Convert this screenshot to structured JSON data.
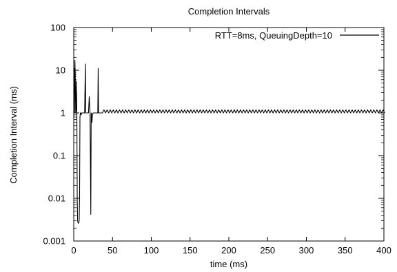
{
  "chart_data": {
    "type": "line",
    "title": "Completion Intervals",
    "xlabel": "time (ms)",
    "ylabel": "Completion Interval (ms)",
    "xlim": [
      0,
      400
    ],
    "ylim": [
      0.001,
      100
    ],
    "yscale": "log",
    "x_ticks": [
      0,
      50,
      100,
      150,
      200,
      250,
      300,
      350,
      400
    ],
    "x_tick_labels": [
      "0",
      "50",
      "100",
      "150",
      "200",
      "250",
      "300",
      "350",
      "400"
    ],
    "y_ticks": [
      0.001,
      0.01,
      0.1,
      1,
      10,
      100
    ],
    "y_tick_labels": [
      "0.001",
      "0.01",
      "0.1",
      "1",
      "10",
      "100"
    ],
    "grid": false,
    "legend_position": "top-right",
    "series": [
      {
        "name": "RTT=8ms, QueuingDepth=10",
        "color": "#000000",
        "x": [
          0,
          0.5,
          1,
          1.5,
          2,
          2.5,
          3,
          3.5,
          4,
          4.5,
          5,
          5.5,
          6,
          6.5,
          7,
          7.5,
          8,
          8.5,
          9,
          9.5,
          10,
          11,
          12,
          13,
          14,
          15,
          15.5,
          16,
          16.5,
          17,
          18,
          19,
          20,
          21,
          22,
          22.5,
          23,
          23.5,
          24,
          25,
          26,
          27,
          28,
          29,
          30,
          31,
          31.5,
          32,
          32.5,
          33,
          34,
          35,
          36,
          37
        ],
        "y": [
          1,
          11,
          1,
          17,
          7,
          1,
          1.2,
          5.5,
          1,
          0.01,
          0.003,
          0.0027,
          0.0026,
          0.0027,
          0.003,
          0.01,
          0.8,
          1,
          1,
          0.9,
          1,
          1,
          1,
          1,
          1,
          14,
          1,
          1,
          1,
          1,
          1,
          1,
          2.4,
          1,
          0.0042,
          1,
          0.9,
          0.6,
          0.9,
          1,
          1,
          1,
          1,
          1,
          1,
          1,
          11,
          1,
          1,
          1,
          1,
          1,
          1,
          1
        ],
        "periodic_tail": {
          "from_x": 37,
          "to_x": 400,
          "baseline": 1,
          "peak": 1.18,
          "period": 4
        }
      }
    ]
  }
}
